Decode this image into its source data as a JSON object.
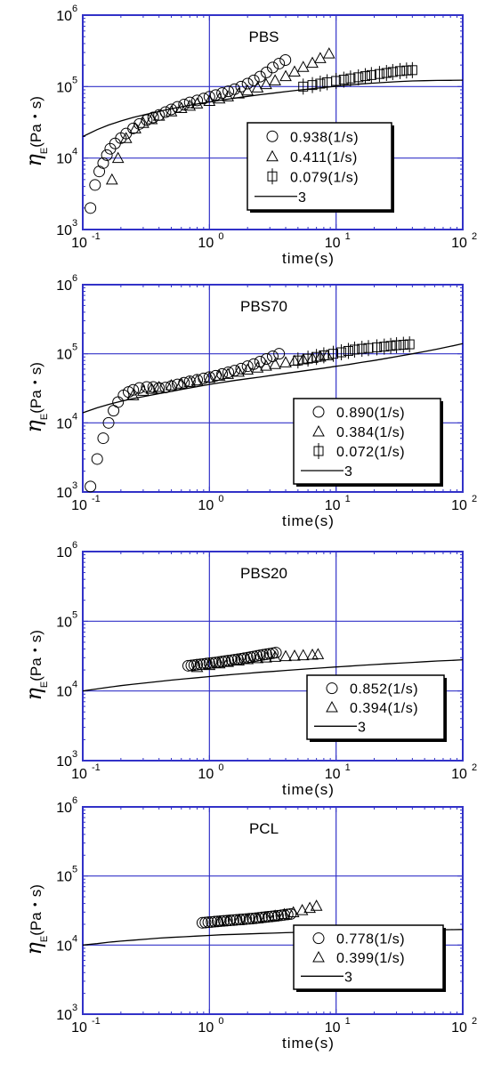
{
  "chart_data": [
    {
      "type": "scatter",
      "title": "PBS",
      "xlabel": "time(s)",
      "ylabel_main": "η",
      "ylabel_sub": "E",
      "ylabel_unit": "(Pa・s)",
      "xscale": "log",
      "yscale": "log",
      "xlim": [
        0.1,
        100
      ],
      "ylim": [
        1000,
        1000000
      ],
      "x_tick_labels": [
        {
          "base": "10",
          "exp": "-1",
          "v": 0.1
        },
        {
          "base": "10",
          "exp": "0",
          "v": 1
        },
        {
          "base": "10",
          "exp": "1",
          "v": 10
        },
        {
          "base": "10",
          "exp": "2",
          "v": 100
        }
      ],
      "y_tick_labels": [
        {
          "base": "10",
          "exp": "3",
          "v": 1000
        },
        {
          "base": "10",
          "exp": "4",
          "v": 10000
        },
        {
          "base": "10",
          "exp": "5",
          "v": 100000
        },
        {
          "base": "10",
          "exp": "6",
          "v": 1000000
        }
      ],
      "grid": true,
      "legend_position": "lower-right",
      "series": [
        {
          "name": "0.938(1/s)",
          "marker": "circle",
          "x": [
            0.115,
            0.125,
            0.135,
            0.145,
            0.155,
            0.165,
            0.18,
            0.2,
            0.22,
            0.25,
            0.28,
            0.32,
            0.36,
            0.4,
            0.45,
            0.5,
            0.56,
            0.63,
            0.7,
            0.8,
            0.9,
            1.0,
            1.12,
            1.26,
            1.41,
            1.58,
            1.78,
            2.0,
            2.24,
            2.51,
            2.82,
            3.16,
            3.55,
            3.98
          ],
          "y": [
            2000,
            4200,
            6500,
            8500,
            11000,
            13500,
            16000,
            19000,
            22000,
            26000,
            30000,
            34000,
            37000,
            40000,
            44000,
            48000,
            52000,
            56000,
            60000,
            64000,
            68000,
            72000,
            76000,
            81000,
            86000,
            92000,
            100000,
            110000,
            122000,
            138000,
            158000,
            185000,
            210000,
            235000
          ]
        },
        {
          "name": "0.411(1/s)",
          "marker": "triangle",
          "x": [
            0.17,
            0.19,
            0.22,
            0.26,
            0.3,
            0.35,
            0.4,
            0.5,
            0.6,
            0.7,
            0.8,
            1.0,
            1.2,
            1.4,
            1.7,
            2.0,
            2.4,
            2.8,
            3.3,
            4.0,
            4.7,
            5.5,
            6.5,
            7.5,
            8.8
          ],
          "y": [
            5000,
            10000,
            19000,
            26000,
            31000,
            35000,
            39000,
            45000,
            50000,
            54000,
            58000,
            63000,
            68000,
            73000,
            80000,
            88000,
            97000,
            108000,
            122000,
            140000,
            162000,
            188000,
            215000,
            250000,
            290000
          ]
        },
        {
          "name": "0.079(1/s)",
          "marker": "square",
          "x": [
            5.5,
            6.5,
            7.5,
            8.5,
            10,
            11.5,
            13,
            15,
            17,
            19,
            22,
            25,
            28,
            32,
            36,
            40
          ],
          "y": [
            100000,
            105000,
            110000,
            115000,
            120000,
            125000,
            130000,
            135000,
            140000,
            145000,
            150000,
            155000,
            160000,
            165000,
            168000,
            170000
          ]
        },
        {
          "name": "3",
          "marker": "line",
          "x": [
            0.1,
            0.13,
            0.16,
            0.2,
            0.25,
            0.32,
            0.4,
            0.5,
            0.63,
            0.8,
            1.0,
            1.26,
            1.58,
            2.0,
            2.5,
            3.2,
            4.0,
            5.0,
            6.3,
            8.0,
            10,
            12.6,
            15.8,
            20,
            25,
            32,
            40,
            50,
            63,
            80,
            100
          ],
          "y": [
            20000,
            25000,
            29000,
            33000,
            37000,
            41000,
            45000,
            49000,
            53000,
            57000,
            61000,
            65000,
            69000,
            73000,
            77000,
            81000,
            85000,
            89000,
            93000,
            97000,
            101000,
            105000,
            109000,
            112000,
            115000,
            118000,
            120000,
            121000,
            122000,
            122500,
            123000
          ]
        }
      ]
    },
    {
      "type": "scatter",
      "title": "PBS70",
      "xlabel": "time(s)",
      "ylabel_main": "η",
      "ylabel_sub": "E",
      "ylabel_unit": "(Pa・s)",
      "xscale": "log",
      "yscale": "log",
      "xlim": [
        0.1,
        100
      ],
      "ylim": [
        1000,
        1000000
      ],
      "x_tick_labels": [
        {
          "base": "10",
          "exp": "-1",
          "v": 0.1
        },
        {
          "base": "10",
          "exp": "0",
          "v": 1
        },
        {
          "base": "10",
          "exp": "1",
          "v": 10
        },
        {
          "base": "10",
          "exp": "2",
          "v": 100
        }
      ],
      "y_tick_labels": [
        {
          "base": "10",
          "exp": "3",
          "v": 1000
        },
        {
          "base": "10",
          "exp": "4",
          "v": 10000
        },
        {
          "base": "10",
          "exp": "5",
          "v": 100000
        },
        {
          "base": "10",
          "exp": "6",
          "v": 1000000
        }
      ],
      "grid": true,
      "legend_position": "lower-right",
      "series": [
        {
          "name": "0.890(1/s)",
          "marker": "circle",
          "x": [
            0.115,
            0.13,
            0.145,
            0.16,
            0.175,
            0.19,
            0.21,
            0.23,
            0.25,
            0.28,
            0.32,
            0.36,
            0.4,
            0.45,
            0.5,
            0.56,
            0.63,
            0.7,
            0.8,
            0.9,
            1.0,
            1.12,
            1.26,
            1.41,
            1.58,
            1.78,
            2.0,
            2.24,
            2.51,
            2.82,
            3.16,
            3.55
          ],
          "y": [
            1200,
            3000,
            6000,
            10000,
            15000,
            20000,
            25000,
            28000,
            30000,
            32000,
            33000,
            33000,
            32000,
            32500,
            34000,
            36000,
            38000,
            40000,
            42000,
            44000,
            46000,
            48000,
            51000,
            54000,
            57000,
            61000,
            66000,
            71000,
            77000,
            84000,
            92000,
            100000
          ]
        },
        {
          "name": "0.384(1/s)",
          "marker": "triangle",
          "x": [
            0.25,
            0.3,
            0.35,
            0.4,
            0.5,
            0.6,
            0.7,
            0.8,
            1.0,
            1.2,
            1.4,
            1.7,
            2.0,
            2.4,
            2.8,
            3.3,
            4.0,
            4.7,
            5.5,
            6.5,
            7.5,
            8.5
          ],
          "y": [
            25000,
            29000,
            31000,
            33000,
            35000,
            37000,
            39000,
            41000,
            45000,
            48000,
            51000,
            55000,
            59000,
            63000,
            67000,
            71000,
            75000,
            79000,
            83000,
            87000,
            91000,
            95000
          ]
        },
        {
          "name": "0.072(1/s)",
          "marker": "square",
          "x": [
            5.0,
            6.0,
            7.0,
            8.0,
            9.5,
            11,
            12.5,
            14,
            16,
            18,
            21,
            24,
            27,
            30,
            34,
            38
          ],
          "y": [
            80000,
            85000,
            90000,
            95000,
            100000,
            105000,
            110000,
            115000,
            118000,
            121000,
            124000,
            127000,
            130000,
            133000,
            135000,
            137000
          ]
        },
        {
          "name": "3",
          "marker": "line",
          "x": [
            0.1,
            0.13,
            0.16,
            0.2,
            0.25,
            0.32,
            0.4,
            0.5,
            0.63,
            0.8,
            1.0,
            1.26,
            1.58,
            2.0,
            2.5,
            3.2,
            4.0,
            5.0,
            6.3,
            8.0,
            10,
            12.6,
            15.8,
            20,
            25,
            32,
            40,
            50,
            63,
            80,
            100
          ],
          "y": [
            14000,
            16500,
            18500,
            20500,
            22500,
            24500,
            26500,
            28500,
            31000,
            33500,
            36000,
            38500,
            41000,
            43500,
            46000,
            49000,
            52000,
            55000,
            58500,
            62000,
            66000,
            70000,
            75000,
            80000,
            86000,
            93000,
            100000,
            108000,
            117000,
            128000,
            140000
          ]
        }
      ]
    },
    {
      "type": "scatter",
      "title": "PBS20",
      "xlabel": "time(s)",
      "ylabel_main": "η",
      "ylabel_sub": "E",
      "ylabel_unit": "(Pa・s)",
      "xscale": "log",
      "yscale": "log",
      "xlim": [
        0.1,
        100
      ],
      "ylim": [
        1000,
        1000000
      ],
      "x_tick_labels": [
        {
          "base": "10",
          "exp": "-1",
          "v": 0.1
        },
        {
          "base": "10",
          "exp": "0",
          "v": 1
        },
        {
          "base": "10",
          "exp": "1",
          "v": 10
        },
        {
          "base": "10",
          "exp": "2",
          "v": 100
        }
      ],
      "y_tick_labels": [
        {
          "base": "10",
          "exp": "3",
          "v": 1000
        },
        {
          "base": "10",
          "exp": "4",
          "v": 10000
        },
        {
          "base": "10",
          "exp": "5",
          "v": 100000
        },
        {
          "base": "10",
          "exp": "6",
          "v": 1000000
        }
      ],
      "grid": true,
      "legend_position": "lower-right",
      "series": [
        {
          "name": "0.852(1/s)",
          "marker": "circle",
          "x": [
            0.68,
            0.72,
            0.76,
            0.8,
            0.85,
            0.9,
            0.95,
            1.0,
            1.06,
            1.12,
            1.19,
            1.26,
            1.33,
            1.41,
            1.5,
            1.58,
            1.68,
            1.78,
            1.88,
            2.0,
            2.11,
            2.24,
            2.37,
            2.51,
            2.66,
            2.82,
            2.99,
            3.16,
            3.35
          ],
          "y": [
            23000,
            23200,
            23500,
            23800,
            24100,
            24400,
            24700,
            25000,
            25300,
            25600,
            26000,
            26400,
            26800,
            27200,
            27600,
            28000,
            28500,
            29000,
            29500,
            30000,
            30600,
            31200,
            31800,
            32400,
            33000,
            33600,
            34200,
            34800,
            35500
          ]
        },
        {
          "name": "0.394(1/s)",
          "marker": "triangle",
          "x": [
            0.8,
            1.0,
            1.2,
            1.4,
            1.7,
            2.0,
            2.4,
            2.8,
            3.3,
            4.0,
            4.7,
            5.5,
            6.5,
            7.2
          ],
          "y": [
            22000,
            23500,
            24800,
            26000,
            27300,
            28500,
            29500,
            30200,
            30800,
            31500,
            32000,
            32500,
            33000,
            33600
          ]
        },
        {
          "name": "3",
          "marker": "line",
          "x": [
            0.1,
            0.13,
            0.16,
            0.2,
            0.25,
            0.32,
            0.4,
            0.5,
            0.63,
            0.8,
            1.0,
            1.26,
            1.58,
            2.0,
            2.5,
            3.2,
            4.0,
            5.0,
            6.3,
            8.0,
            10,
            12.6,
            15.8,
            20,
            25,
            32,
            40,
            50,
            63,
            80,
            100
          ],
          "y": [
            10000,
            10700,
            11300,
            11900,
            12500,
            13100,
            13700,
            14300,
            14900,
            15500,
            16100,
            16700,
            17300,
            17900,
            18500,
            19100,
            19700,
            20300,
            20900,
            21500,
            22100,
            22700,
            23300,
            23900,
            24500,
            25100,
            25700,
            26300,
            26900,
            27400,
            28000
          ]
        }
      ]
    },
    {
      "type": "scatter",
      "title": "PCL",
      "xlabel": "time(s)",
      "ylabel_main": "η",
      "ylabel_sub": "E",
      "ylabel_unit": "(Pa・s)",
      "xscale": "log",
      "yscale": "log",
      "xlim": [
        0.1,
        100
      ],
      "ylim": [
        1000,
        1000000
      ],
      "x_tick_labels": [
        {
          "base": "10",
          "exp": "-1",
          "v": 0.1
        },
        {
          "base": "10",
          "exp": "0",
          "v": 1
        },
        {
          "base": "10",
          "exp": "1",
          "v": 10
        },
        {
          "base": "10",
          "exp": "2",
          "v": 100
        }
      ],
      "y_tick_labels": [
        {
          "base": "10",
          "exp": "3",
          "v": 1000
        },
        {
          "base": "10",
          "exp": "4",
          "v": 10000
        },
        {
          "base": "10",
          "exp": "5",
          "v": 100000
        },
        {
          "base": "10",
          "exp": "6",
          "v": 1000000
        }
      ],
      "grid": true,
      "legend_position": "lower-right",
      "series": [
        {
          "name": "0.778(1/s)",
          "marker": "circle",
          "x": [
            0.88,
            0.93,
            0.98,
            1.04,
            1.1,
            1.16,
            1.23,
            1.3,
            1.38,
            1.46,
            1.55,
            1.64,
            1.74,
            1.84,
            1.95,
            2.07,
            2.19,
            2.32,
            2.46,
            2.6,
            2.76,
            2.92,
            3.1,
            3.28,
            3.48,
            3.69,
            3.9,
            4.14,
            4.38
          ],
          "y": [
            21000,
            21200,
            21400,
            21600,
            21800,
            22000,
            22200,
            22400,
            22600,
            22800,
            23000,
            23200,
            23400,
            23600,
            23800,
            24000,
            24200,
            24500,
            24800,
            25100,
            25400,
            25700,
            26000,
            26300,
            26600,
            27000,
            27400,
            27800,
            28200
          ]
        },
        {
          "name": "0.399(1/s)",
          "marker": "triangle",
          "x": [
            1.2,
            1.4,
            1.7,
            2.0,
            2.4,
            2.8,
            3.3,
            3.9,
            4.6,
            5.4,
            6.2,
            7.0
          ],
          "y": [
            22000,
            22500,
            23000,
            23600,
            24400,
            25400,
            26600,
            28000,
            29800,
            32000,
            34500,
            37000
          ]
        },
        {
          "name": "3",
          "marker": "line",
          "x": [
            0.1,
            0.13,
            0.16,
            0.2,
            0.25,
            0.32,
            0.4,
            0.5,
            0.63,
            0.8,
            1.0,
            1.26,
            1.58,
            2.0,
            2.5,
            3.2,
            4.0,
            5.0,
            6.3,
            8.0,
            10,
            12.6,
            15.8,
            20,
            25,
            32,
            40,
            50,
            63,
            80,
            100
          ],
          "y": [
            10000,
            10500,
            11000,
            11400,
            11800,
            12200,
            12600,
            12900,
            13200,
            13500,
            13800,
            14100,
            14300,
            14500,
            14700,
            14900,
            15100,
            15300,
            15450,
            15600,
            15750,
            15900,
            16000,
            16100,
            16200,
            16300,
            16400,
            16500,
            16600,
            16700,
            16800
          ]
        }
      ]
    }
  ]
}
